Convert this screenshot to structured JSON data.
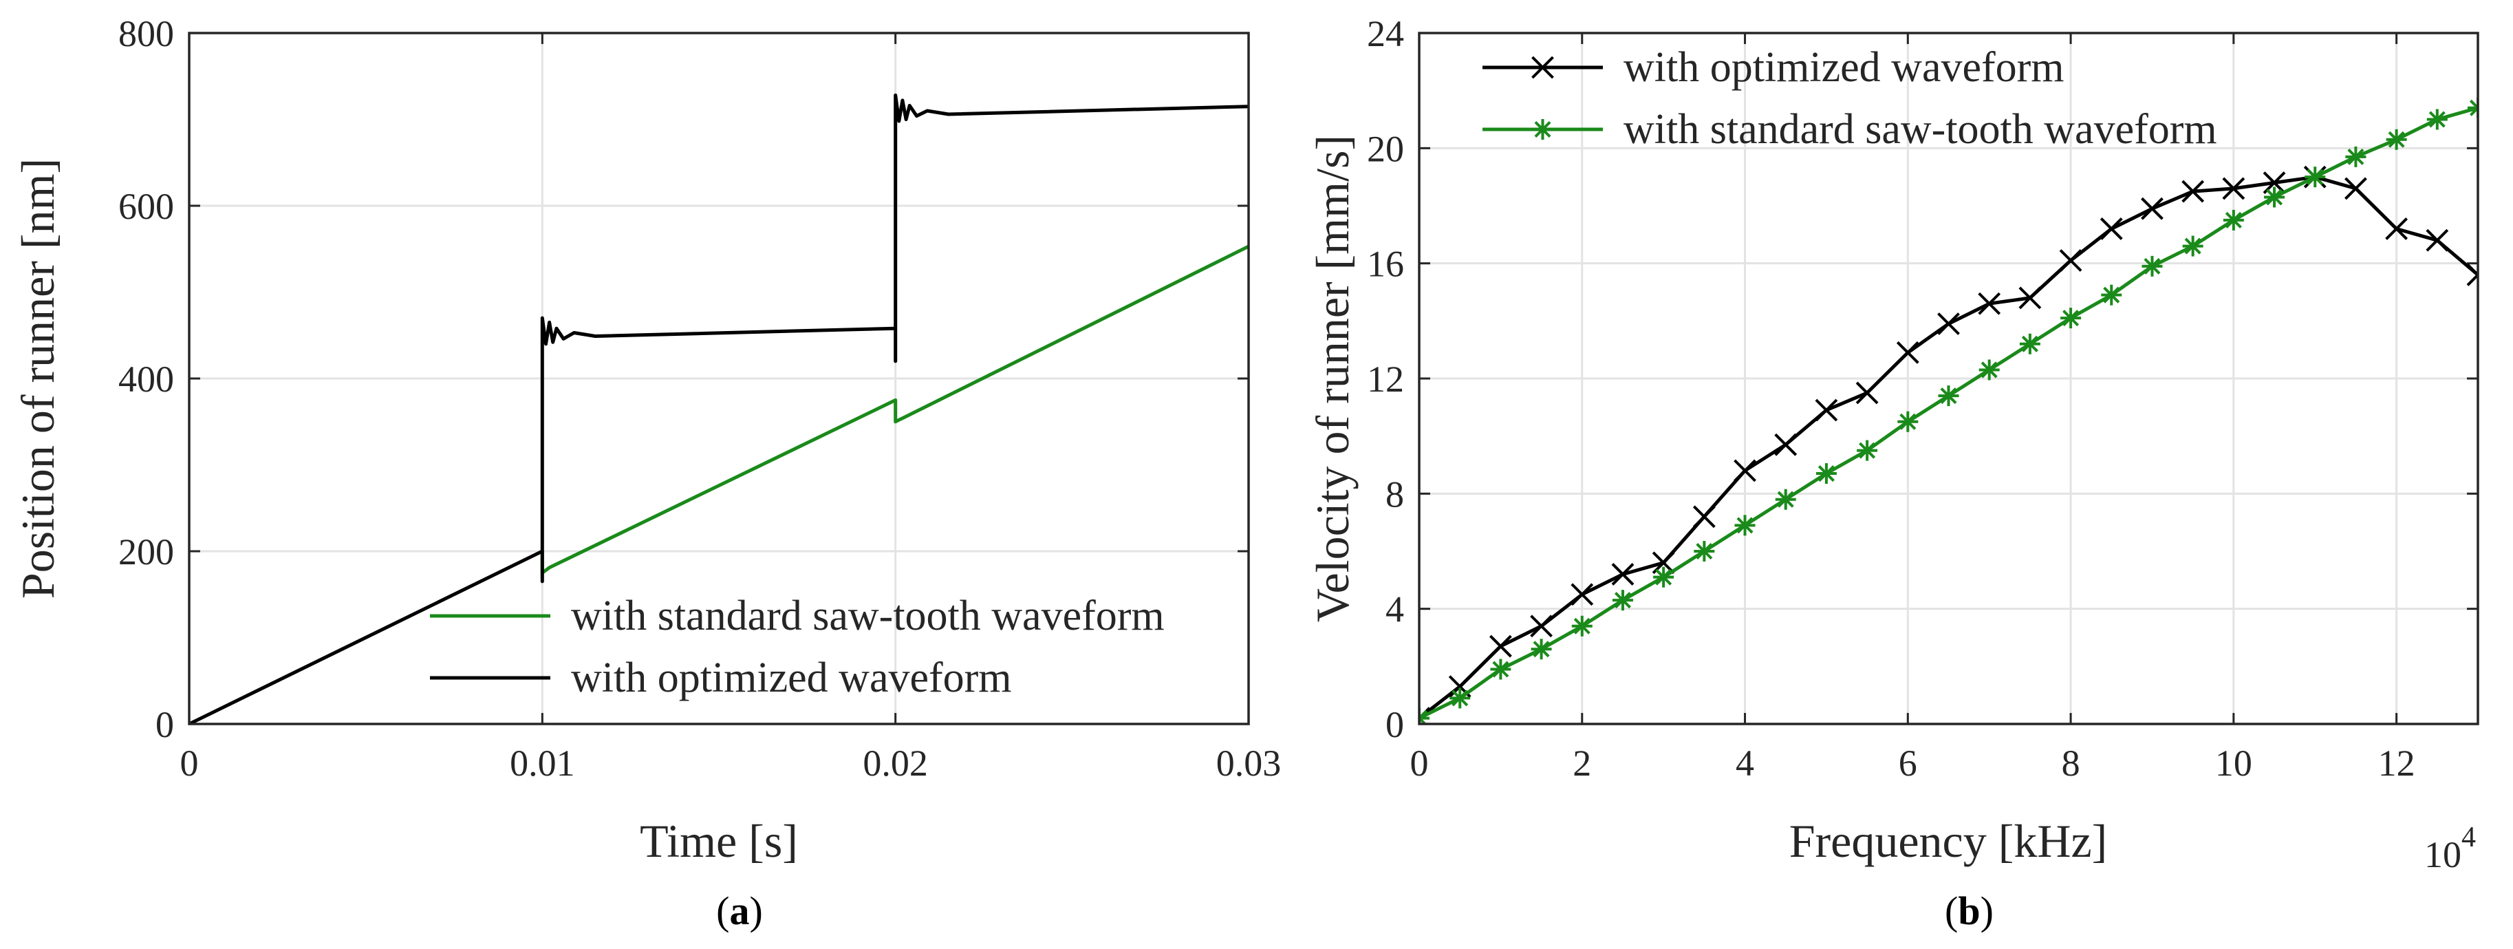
{
  "chart_data": [
    {
      "type": "line",
      "panel_label": "(a)",
      "panel_letter": "a",
      "xlabel": "Time [s]",
      "ylabel": "Position of runner [nm]",
      "xlim": [
        0,
        0.03
      ],
      "ylim": [
        0,
        800
      ],
      "xticks": [
        0,
        0.01,
        0.02,
        0.03
      ],
      "xtick_labels": [
        "0",
        "0.01",
        "0.02",
        "0.03"
      ],
      "yticks": [
        0,
        200,
        400,
        600,
        800
      ],
      "ytick_labels": [
        "0",
        "200",
        "400",
        "600",
        "800"
      ],
      "grid": true,
      "legend_position": "bottom-right",
      "series": [
        {
          "name": "with standard saw-tooth waveform",
          "color": "#1a8a1a",
          "points": [
            [
              0.01,
              200
            ],
            [
              0.01,
              175
            ],
            [
              0.0101,
              178
            ],
            [
              0.0102,
              181
            ],
            [
              0.02,
              375
            ],
            [
              0.02,
              350
            ],
            [
              0.0201,
              352
            ],
            [
              0.0202,
              354
            ],
            [
              0.03,
              553
            ]
          ]
        },
        {
          "name": "with optimized waveform",
          "color": "#000000",
          "points": [
            [
              0,
              0
            ],
            [
              0.01,
              200
            ],
            [
              0.01,
              165
            ],
            [
              0.01,
              470
            ],
            [
              0.0101,
              440
            ],
            [
              0.0102,
              465
            ],
            [
              0.0103,
              442
            ],
            [
              0.0104,
              458
            ],
            [
              0.0106,
              446
            ],
            [
              0.0109,
              453
            ],
            [
              0.0115,
              449
            ],
            [
              0.02,
              458
            ],
            [
              0.02,
              420
            ],
            [
              0.02,
              728
            ],
            [
              0.0201,
              698
            ],
            [
              0.0202,
              722
            ],
            [
              0.0203,
              700
            ],
            [
              0.0204,
              716
            ],
            [
              0.0206,
              704
            ],
            [
              0.0209,
              710
            ],
            [
              0.0215,
              706
            ],
            [
              0.03,
              715
            ]
          ]
        }
      ]
    },
    {
      "type": "line",
      "panel_label": "(b)",
      "panel_letter": "b",
      "xlabel": "Frequency [kHz]",
      "ylabel": "Velocity of runner [mm/s]",
      "xlim": [
        0,
        13
      ],
      "ylim": [
        0,
        24
      ],
      "xticks": [
        0,
        2,
        4,
        6,
        8,
        10,
        12
      ],
      "xtick_labels": [
        "0",
        "2",
        "4",
        "6",
        "8",
        "10",
        "12"
      ],
      "yticks": [
        0,
        4,
        8,
        12,
        16,
        20,
        24
      ],
      "ytick_labels": [
        "0",
        "4",
        "8",
        "12",
        "16",
        "20",
        "24"
      ],
      "x_multiplier_base": "10",
      "x_multiplier_exponent": "4",
      "grid": true,
      "legend_position": "top-left",
      "series": [
        {
          "name": "with optimized waveform",
          "color": "#000000",
          "marker": "x",
          "x": [
            0,
            0.5,
            1,
            1.5,
            2,
            2.5,
            3,
            3.5,
            4,
            4.5,
            5,
            5.5,
            6,
            6.5,
            7,
            7.5,
            8,
            8.5,
            9,
            9.5,
            10,
            10.5,
            11,
            11.5,
            12,
            12.5,
            13
          ],
          "y": [
            0.2,
            1.3,
            2.7,
            3.4,
            4.5,
            5.2,
            5.6,
            7.2,
            8.8,
            9.7,
            10.9,
            11.5,
            12.9,
            13.9,
            14.6,
            14.8,
            16.1,
            17.2,
            17.9,
            18.5,
            18.6,
            18.8,
            19.0,
            18.6,
            17.2,
            16.8,
            15.6
          ]
        },
        {
          "name": "with standard saw-tooth waveform",
          "color": "#1a8a1a",
          "marker": "*",
          "x": [
            0,
            0.5,
            1,
            1.5,
            2,
            2.5,
            3,
            3.5,
            4,
            4.5,
            5,
            5.5,
            6,
            6.5,
            7,
            7.5,
            8,
            8.5,
            9,
            9.5,
            10,
            10.5,
            11,
            11.5,
            12,
            12.5,
            13
          ],
          "y": [
            0.2,
            0.9,
            1.9,
            2.6,
            3.4,
            4.3,
            5.1,
            6.0,
            6.9,
            7.8,
            8.7,
            9.5,
            10.5,
            11.4,
            12.3,
            13.2,
            14.1,
            14.9,
            15.9,
            16.6,
            17.5,
            18.3,
            19.0,
            19.7,
            20.3,
            21.0,
            21.4
          ]
        }
      ]
    }
  ]
}
